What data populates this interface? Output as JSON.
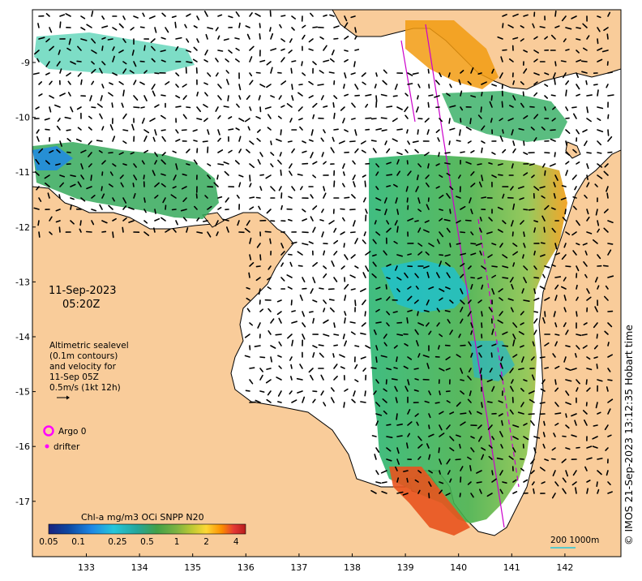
{
  "map": {
    "date": "11-Sep-2023",
    "time": "05:20Z",
    "legend_lines": [
      "Altimetric sealevel",
      "(0.1m contours)",
      "and velocity for",
      "11-Sep 05Z",
      "0.5m/s (1kt 12h)"
    ],
    "argo_label": "Argo 0",
    "drifter_label": "drifter",
    "credit": "© IMOS 21-Sep-2023 13:12:35 Hobart time",
    "scale_label": "200  1000m"
  },
  "axes": {
    "lon_ticks": [
      "133",
      "134",
      "135",
      "136",
      "137",
      "138",
      "139",
      "140",
      "141",
      "142"
    ],
    "lat_ticks": [
      "-9",
      "-10",
      "-11",
      "-12",
      "-13",
      "-14",
      "-15",
      "-16",
      "-17"
    ]
  },
  "colorbar": {
    "title": "Chl-a mg/m3 OCi SNPP N20",
    "tick_labels": [
      "0.05",
      "0.1",
      "0.25",
      "0.5",
      "1",
      "2",
      "4"
    ],
    "colors": [
      "#1a237e",
      "#0d47a1",
      "#1e88e5",
      "#26c6da",
      "#26a69a",
      "#43a047",
      "#7cb342",
      "#c0ca33",
      "#fdd835",
      "#fb8c00",
      "#e53935",
      "#b71c1c"
    ]
  },
  "style": {
    "land": "#f9cc9a",
    "sea": "#ffffff",
    "coast": "#000000",
    "argo": "#ff00ff",
    "track": "#cc00cc"
  }
}
